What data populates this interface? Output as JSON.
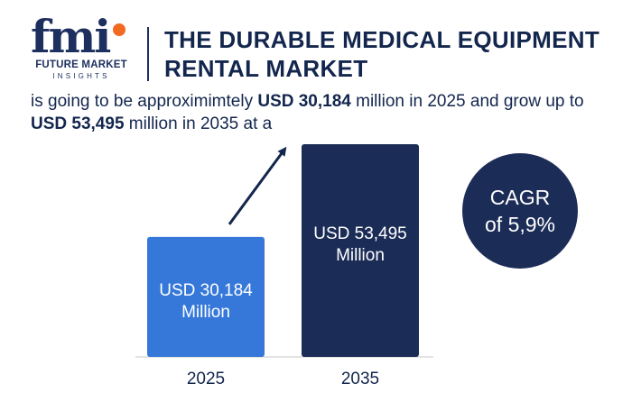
{
  "logo": {
    "mark": "fmi",
    "line1": "FUTURE MARKET",
    "line2": "INSIGHTS"
  },
  "header": {
    "title_line1": "THE DURABLE MEDICAL EQUIPMENT",
    "title_line2": "RENTAL MARKET"
  },
  "summary": {
    "part1": "is going to be approximimtely ",
    "value_2025": "USD 30,184",
    "part2": " million in 2025 and grow up to ",
    "value_2035": "USD 53,495",
    "part3": " million in 2035 at a"
  },
  "cagr": {
    "line1": "CAGR",
    "line2": "of 5,9%"
  },
  "colors": {
    "bar_2025": "#3578d9",
    "bar_2035": "#1b2c57",
    "arrow": "#13264d",
    "text": "#13264d"
  },
  "chart_data": {
    "type": "bar",
    "categories": [
      "2025",
      "2035"
    ],
    "values": [
      30184,
      53495
    ],
    "unit": "USD million",
    "data_labels": [
      [
        "USD 30,184",
        "Million"
      ],
      [
        "USD 53,495",
        "Million"
      ]
    ],
    "ylim": [
      0,
      60000
    ],
    "grid": false,
    "trend_arrow": true
  }
}
